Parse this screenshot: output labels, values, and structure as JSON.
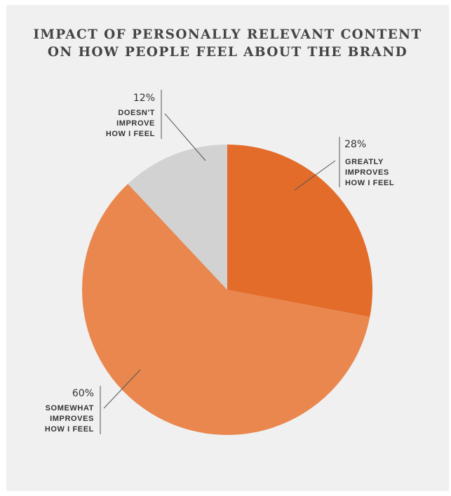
{
  "chart_data": {
    "type": "pie",
    "title_lines": [
      "IMPACT OF PERSONALLY RELEVANT CONTENT",
      "ON HOW PEOPLE FEEL ABOUT THE BRAND"
    ],
    "slices": [
      {
        "value": 28,
        "pct_label": "28%",
        "label_lines": [
          "GREATLY",
          "IMPROVES",
          "HOW I FEEL"
        ],
        "color": "#e36c2a"
      },
      {
        "value": 60,
        "pct_label": "60%",
        "label_lines": [
          "SOMEWHAT",
          "IMPROVES",
          "HOW I FEEL"
        ],
        "color": "#e9874e"
      },
      {
        "value": 12,
        "pct_label": "12%",
        "label_lines": [
          "DOESN'T",
          "IMPROVE",
          "HOW I FEEL"
        ],
        "color": "#d2d2d2"
      }
    ],
    "start_angle": "12 o'clock",
    "direction": "clockwise",
    "legend": "none"
  }
}
